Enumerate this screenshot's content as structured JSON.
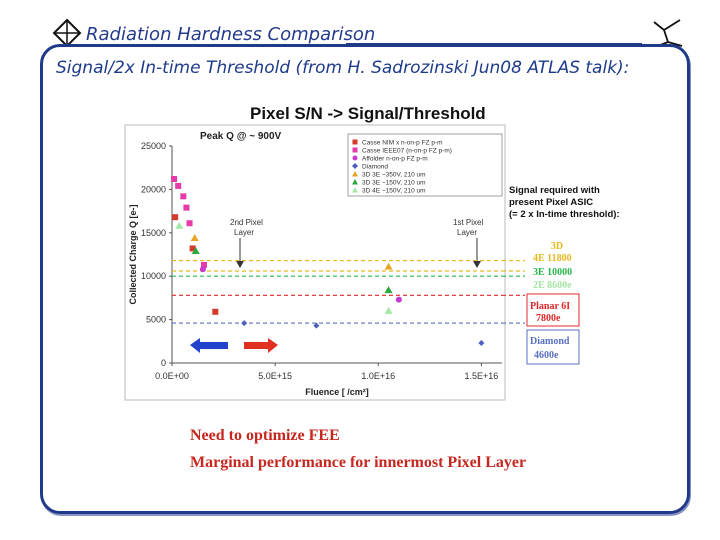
{
  "slide": {
    "title": "Radiation Hardness Comparison",
    "subtitle": "Signal/2x In-time Threshold (from H. Sadrozinski Jun08 ATLAS talk):",
    "notes": [
      "Need to optimize FEE",
      "Marginal performance for innermost Pixel Layer"
    ]
  },
  "chart_data": {
    "type": "scatter",
    "title": "Pixel S/N -> Signal/Threshold",
    "xlabel": "Fluence [ /cm²]",
    "ylabel": "Collected Charge Q [e-]",
    "xlim": [
      0,
      1.6e+16
    ],
    "ylim": [
      0,
      25000
    ],
    "x_ticks": [
      "0.0E+00",
      "5.0E+15",
      "1.0E+16",
      "1.5E+16"
    ],
    "y_ticks": [
      "0",
      "5000",
      "10000",
      "15000",
      "20000",
      "25000"
    ],
    "grid": false,
    "legend_position": "top-right",
    "annotations": {
      "peak": "Peak Q @ ~ 900V",
      "layer2": [
        "2nd Pixel",
        "Layer"
      ],
      "layer1": [
        "1st Pixel",
        "Layer"
      ],
      "signal_req": [
        "Signal required with",
        "present Pixel ASIC",
        "(= 2 x In-time threshold):"
      ]
    },
    "series": [
      {
        "name": "Casse NIM x n-on-p FZ p-m",
        "color": "#d63a2a",
        "marker": "square",
        "x": [
          150000000000000.0,
          1000000000000000.0,
          2100000000000000.0
        ],
        "y": [
          16800,
          13200,
          5900
        ]
      },
      {
        "name": "Casse IEEE07 (n-on-p FZ p-m)",
        "color": "#e53aa8",
        "marker": "square",
        "x": [
          100000000000000.0,
          300000000000000.0,
          550000000000000.0,
          700000000000000.0,
          850000000000000.0,
          1550000000000000.0
        ],
        "y": [
          21200,
          20400,
          19200,
          17900,
          16100,
          11300
        ]
      },
      {
        "name": "Affolder n-on-p FZ p-m",
        "color": "#c63ad0",
        "marker": "circle",
        "x": [
          1500000000000000.0,
          1.1e+16
        ],
        "y": [
          10800,
          7300
        ]
      },
      {
        "name": "Diamond",
        "color": "#4a5fc0",
        "marker": "diamond",
        "x": [
          3500000000000000.0,
          7000000000000000.0,
          1.5e+16
        ],
        "y": [
          4600,
          4300,
          2300
        ]
      },
      {
        "name": "3D 3E ~350V, 210 um",
        "color": "#e6a628",
        "marker": "triangle",
        "x": [
          1100000000000000.0,
          1.05e+16
        ],
        "y": [
          14400,
          11100
        ]
      },
      {
        "name": "3D 3E ~150V, 210 um",
        "color": "#2aa63a",
        "marker": "triangle",
        "x": [
          1150000000000000.0,
          1.05e+16
        ],
        "y": [
          12900,
          8400
        ]
      },
      {
        "name": "3D 4E ~150V, 210 um",
        "color": "#a6e6a6",
        "marker": "triangle",
        "x": [
          350000000000000.0,
          1.05e+16
        ],
        "y": [
          15800,
          6000
        ]
      }
    ],
    "thresholds": [
      {
        "label": "3D",
        "value": 12000,
        "color": "#e6b820"
      },
      {
        "label": "4E 11800",
        "value": 11800,
        "color": "#e6b820"
      },
      {
        "label": "3E 10000",
        "value": 10000,
        "color": "#2ab84a"
      },
      {
        "label": "2E 8600e",
        "value": 8600,
        "color": "#a6e6a6"
      },
      {
        "label": "Planar 6I",
        "value": 7800,
        "color": "#e02828"
      },
      {
        "label": "7800e",
        "value": 7800,
        "color": "#e02828"
      },
      {
        "label": "Diamond",
        "value": 4600,
        "color": "#5870c0"
      },
      {
        "label": "4600e",
        "value": 4600,
        "color": "#5870c0"
      }
    ]
  }
}
